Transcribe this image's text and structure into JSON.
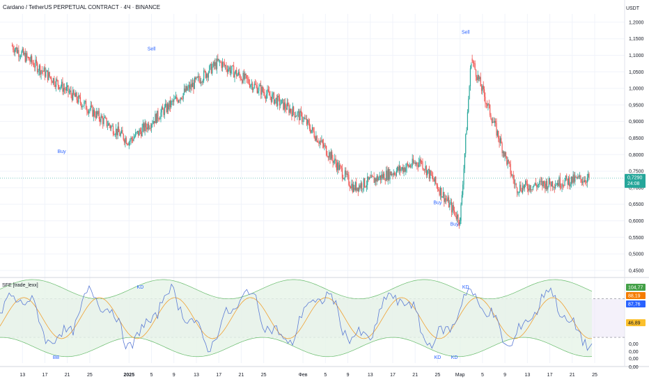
{
  "header": {
    "title": "Cardano / TetherUS PERPETUAL CONTRACT · 4Ч · BINANCE",
    "currency": "USDT"
  },
  "indicator": {
    "label": "SFE [trade_lexx]"
  },
  "colors": {
    "up": "#26a69a",
    "down": "#ef5350",
    "grid": "#f0f3fa",
    "text": "#131722",
    "signal": "#2962ff",
    "band_fill": "#e6f4e7",
    "band_line": "#66bb6a",
    "zone_fill": "#ede7f6",
    "fast_line": "#5b7bd5",
    "slow_line": "#f0a030"
  },
  "chart_data": [
    {
      "type": "candlestick",
      "title": "Cardano / TetherUS PERPETUAL CONTRACT · 4Ч · BINANCE",
      "y_label": "USDT",
      "y_ticks": [
        "1,2000",
        "1,1500",
        "1,1000",
        "1,0500",
        "1,0000",
        "0,9500",
        "0,9000",
        "0,8500",
        "0,8000",
        "0,7500",
        "0,7000",
        "0,6500",
        "0,6000",
        "0,5500",
        "0,5000",
        "0,4500"
      ],
      "ylim": [
        0.435,
        1.225
      ],
      "x_ticks": [
        "13",
        "17",
        "21",
        "25",
        "2025",
        "5",
        "9",
        "13",
        "17",
        "21",
        "25",
        "Фев",
        "5",
        "9",
        "13",
        "17",
        "21",
        "25",
        "Мар",
        "5",
        "9",
        "13",
        "17",
        "21",
        "25"
      ],
      "x_ranges": [
        {
          "from": "Dec 11, 2024",
          "to": "Jan 1, 2025",
          "start": 1.13,
          "end": 0.84
        },
        {
          "from": "Jan 1, 2025",
          "to": "Jan 17, 2025",
          "start": 0.84,
          "end": 1.08
        },
        {
          "from": "Jan 17, 2025",
          "to": "Feb 1, 2025",
          "start": 1.08,
          "end": 0.91
        },
        {
          "from": "Feb 1, 2025",
          "to": "Feb 10, 2025",
          "start": 0.91,
          "end": 0.7
        },
        {
          "from": "Feb 10, 2025",
          "to": "Feb 22, 2025",
          "start": 0.7,
          "end": 0.78
        },
        {
          "from": "Feb 22, 2025",
          "to": "Mar 1, 2025",
          "start": 0.78,
          "end": 0.6
        },
        {
          "from": "Mar 1, 2025",
          "to": "Mar 3, 2025",
          "start": 0.6,
          "end": 1.09
        },
        {
          "from": "Mar 3, 2025",
          "to": "Mar 11, 2025",
          "start": 1.09,
          "end": 0.7
        },
        {
          "from": "Mar 11, 2025",
          "to": "Mar 24, 2025",
          "start": 0.7,
          "end": 0.729
        }
      ],
      "current_price": "0,7290",
      "countdown": "24:08",
      "signals": [
        {
          "label": "Buy",
          "date": "Dec 20, 2024",
          "price": 0.805
        },
        {
          "label": "Sell",
          "date": "Jan 5, 2025",
          "price": 1.115
        },
        {
          "label": "Sell",
          "date": "Mar 2, 2025",
          "price": 1.165
        },
        {
          "label": "Buy",
          "date": "Feb 25, 2025",
          "price": 0.65
        },
        {
          "label": "Buy",
          "date": "Feb 28, 2025",
          "price": 0.585
        }
      ]
    },
    {
      "type": "line",
      "title": "SFE [trade_lexx]",
      "y_ticks": [
        "104,77",
        "88,19",
        "87,76",
        "46,89",
        "0,00",
        "0,00",
        "0,00",
        "0,00"
      ],
      "levels": {
        "upper": 80,
        "lower": 20
      },
      "value_badges": [
        {
          "text": "104,77",
          "color": "#43a047"
        },
        {
          "text": "88,19",
          "color": "#f57c00"
        },
        {
          "text": "87,76",
          "color": "#2962ff"
        },
        {
          "text": "46,89",
          "color": "#fbc02d"
        }
      ],
      "annotations": [
        {
          "label": "KD",
          "date": "Jan 3, 2025"
        },
        {
          "label": "KD",
          "date": "Mar 2, 2025"
        },
        {
          "label": "BB",
          "date": "Dec 19, 2024"
        },
        {
          "label": "KD",
          "date": "Feb 25, 2025"
        },
        {
          "label": "KD",
          "date": "Feb 28, 2025"
        }
      ]
    }
  ]
}
